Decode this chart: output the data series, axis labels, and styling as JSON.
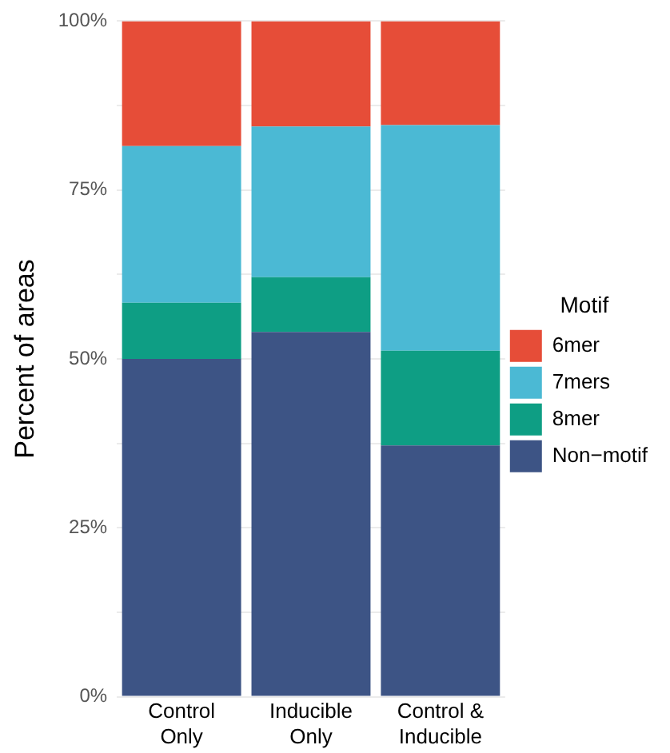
{
  "chart_data": {
    "type": "bar",
    "stacked": true,
    "ylabel": "Percent of areas",
    "legend_title": "Motif",
    "legend": "right",
    "grid": "y",
    "categories": [
      "Control\nOnly",
      "Inducible\nOnly",
      "Control &\nInducible"
    ],
    "series": [
      {
        "name": "Non−motif",
        "color": "#3d5485",
        "values": [
          50,
          54,
          37.2
        ]
      },
      {
        "name": "8mer",
        "color": "#0e9e84",
        "values": [
          8.3,
          8.1,
          14
        ]
      },
      {
        "name": "7mers",
        "color": "#4bb9d4",
        "values": [
          23.2,
          22.3,
          33.4
        ]
      },
      {
        "name": "6mer",
        "color": "#e64d38",
        "values": [
          18.5,
          15.6,
          15.4
        ]
      }
    ],
    "ylim": [
      0,
      100
    ],
    "yticks": [
      {
        "value": 0,
        "label": "0%"
      },
      {
        "value": 12.5,
        "label": null
      },
      {
        "value": 25,
        "label": "25%"
      },
      {
        "value": 37.5,
        "label": null
      },
      {
        "value": 50,
        "label": "50%"
      },
      {
        "value": 62.5,
        "label": null
      },
      {
        "value": 75,
        "label": "75%"
      },
      {
        "value": 87.5,
        "label": null
      },
      {
        "value": 100,
        "label": "100%"
      }
    ]
  }
}
